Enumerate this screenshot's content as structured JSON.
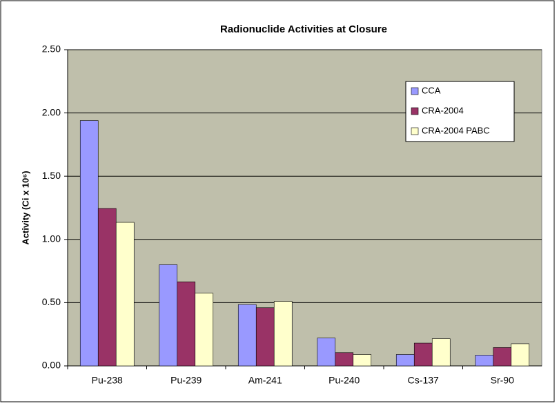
{
  "chart_data": {
    "type": "bar",
    "title": "Radionuclide Activities at Closure",
    "y_label": "Activity (Ci x 10⁶)",
    "categories": [
      "Pu-238",
      "Pu-239",
      "Am-241",
      "Pu-240",
      "Cs-137",
      "Sr-90"
    ],
    "series": [
      {
        "name": "CCA",
        "color": "#9999ff",
        "values": [
          1.94,
          0.8,
          0.485,
          0.22,
          0.09,
          0.085
        ]
      },
      {
        "name": "CRA-2004",
        "color": "#993366",
        "values": [
          1.245,
          0.665,
          0.46,
          0.105,
          0.18,
          0.145
        ]
      },
      {
        "name": "CRA-2004 PABC",
        "color": "#ffffcc",
        "values": [
          1.135,
          0.575,
          0.51,
          0.09,
          0.215,
          0.175
        ]
      }
    ],
    "ylim": [
      0,
      2.5
    ],
    "yticks": [
      {
        "value": 0,
        "label": "0.00"
      },
      {
        "value": 0.5,
        "label": "0.50"
      },
      {
        "value": 1,
        "label": "1.00"
      },
      {
        "value": 1.5,
        "label": "1.50"
      },
      {
        "value": 2,
        "label": "2.00"
      },
      {
        "value": 2.5,
        "label": "2.50"
      }
    ],
    "grid": true,
    "legend": "upper right"
  }
}
